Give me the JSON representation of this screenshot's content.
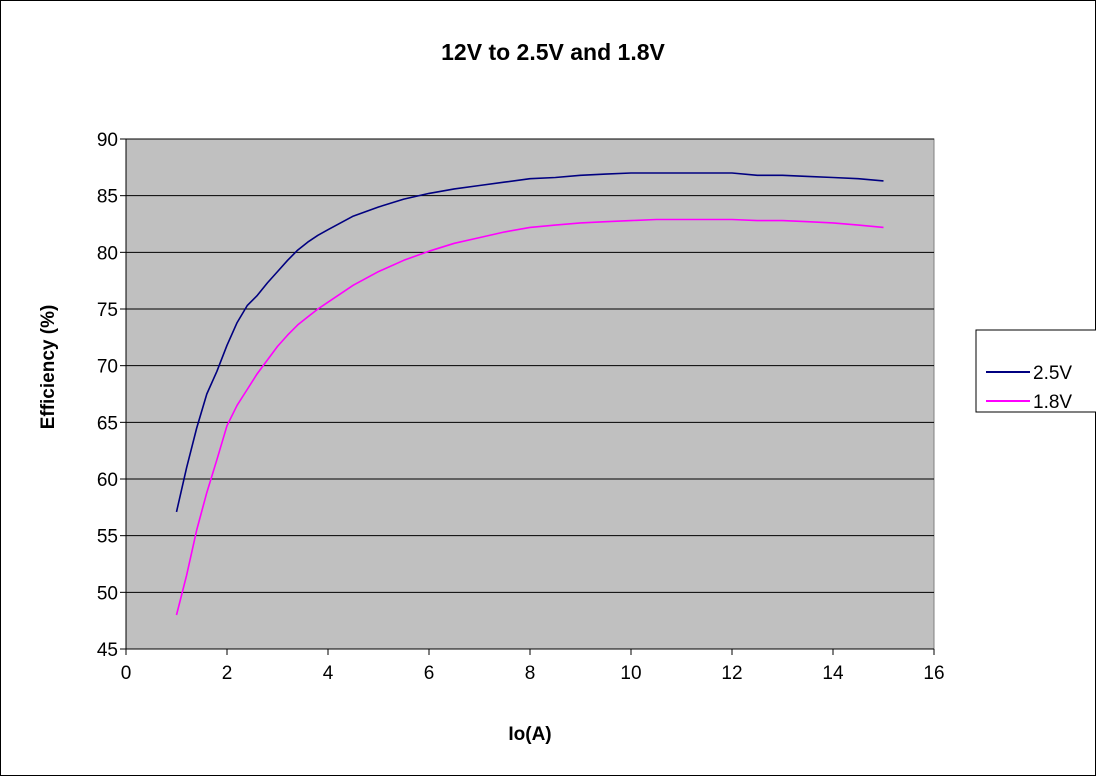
{
  "chart_data": {
    "type": "line",
    "title": "12V to 2.5V and 1.8V",
    "xlabel": "Io(A)",
    "ylabel": "Efficiency (%)",
    "xlim": [
      0,
      16
    ],
    "ylim": [
      45,
      90
    ],
    "xticks": [
      0,
      2,
      4,
      6,
      8,
      10,
      12,
      14,
      16
    ],
    "yticks": [
      45,
      50,
      55,
      60,
      65,
      70,
      75,
      80,
      85,
      90
    ],
    "grid": "horizontal",
    "plot_background": "#C0C0C0",
    "legend_position": "right",
    "series": [
      {
        "name": "2.5V",
        "color": "#000080",
        "x": [
          1,
          1.2,
          1.4,
          1.6,
          1.8,
          2,
          2.2,
          2.4,
          2.6,
          2.8,
          3,
          3.2,
          3.4,
          3.6,
          3.8,
          4,
          4.5,
          5,
          5.5,
          6,
          6.5,
          7,
          7.5,
          8,
          8.5,
          9,
          9.5,
          10,
          10.5,
          11,
          11.5,
          12,
          12.5,
          13,
          13.5,
          14,
          14.5,
          15
        ],
        "y": [
          57.1,
          61.0,
          64.5,
          67.5,
          69.5,
          71.8,
          73.8,
          75.3,
          76.2,
          77.3,
          78.3,
          79.3,
          80.2,
          80.9,
          81.5,
          82.0,
          83.2,
          84.0,
          84.7,
          85.2,
          85.6,
          85.9,
          86.2,
          86.5,
          86.6,
          86.8,
          86.9,
          87.0,
          87.0,
          87.0,
          87.0,
          87.0,
          86.8,
          86.8,
          86.7,
          86.6,
          86.5,
          86.3
        ]
      },
      {
        "name": "1.8V",
        "color": "#FF00FF",
        "x": [
          1,
          1.2,
          1.4,
          1.6,
          1.8,
          2,
          2.2,
          2.4,
          2.6,
          2.8,
          3,
          3.2,
          3.4,
          3.6,
          3.8,
          4,
          4.5,
          5,
          5.5,
          6,
          6.5,
          7,
          7.5,
          8,
          8.5,
          9,
          9.5,
          10,
          10.5,
          11,
          11.5,
          12,
          12.5,
          13,
          13.5,
          14,
          14.5,
          15
        ],
        "y": [
          48.0,
          51.5,
          55.5,
          58.8,
          61.7,
          64.7,
          66.5,
          67.9,
          69.3,
          70.5,
          71.7,
          72.7,
          73.6,
          74.3,
          75.0,
          75.6,
          77.1,
          78.3,
          79.3,
          80.1,
          80.8,
          81.3,
          81.8,
          82.2,
          82.4,
          82.6,
          82.7,
          82.8,
          82.9,
          82.9,
          82.9,
          82.9,
          82.8,
          82.8,
          82.7,
          82.6,
          82.4,
          82.2
        ]
      }
    ]
  }
}
